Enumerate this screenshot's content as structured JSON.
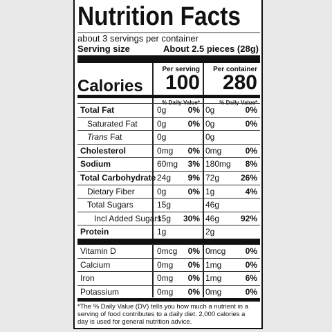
{
  "title": "Nutrition Facts",
  "servings": "about 3 servings per container",
  "serving_size_label": "Serving size",
  "serving_size_value": "About 2.5 pieces (28g)",
  "per_serving": "Per serving",
  "per_container": "Per container",
  "calories_label": "Calories",
  "calories_serving": "100",
  "calories_container": "280",
  "dv_header": "% Daily Value*",
  "dv_header_container": "% Daily Value*",
  "rows": [
    {
      "name": "Total Fat",
      "bold": true,
      "indent": 0,
      "a1": "0g",
      "d1": "0%",
      "a2": "0g",
      "d2": "0%"
    },
    {
      "name": "Saturated Fat",
      "bold": false,
      "indent": 1,
      "a1": "0g",
      "d1": "0%",
      "a2": "0g",
      "d2": "0%"
    },
    {
      "name_prefix": "Trans",
      "name": "Fat",
      "bold": false,
      "indent": 1,
      "a1": "0g",
      "a2": "0g"
    },
    {
      "name": "Cholesterol",
      "bold": true,
      "indent": 0,
      "a1": "0mg",
      "d1": "0%",
      "a2": "0mg",
      "d2": "0%"
    },
    {
      "name": "Sodium",
      "bold": true,
      "indent": 0,
      "a1": "60mg",
      "d1": "3%",
      "a2": "180mg",
      "d2": "8%"
    },
    {
      "name": "Total Carbohydrate",
      "bold": true,
      "indent": 0,
      "a1": "24g",
      "d1": "9%",
      "a2": "72g",
      "d2": "26%"
    },
    {
      "name": "Dietary Fiber",
      "bold": false,
      "indent": 1,
      "a1": "0g",
      "d1": "0%",
      "a2": "1g",
      "d2": "4%"
    },
    {
      "name": "Total Sugars",
      "bold": false,
      "indent": 1,
      "a1": "15g",
      "a2": "46g"
    },
    {
      "name": "Incl Added Sugars",
      "bold": false,
      "indent": 2,
      "a1": "15g",
      "d1": "30%",
      "a2": "46g",
      "d2": "92%"
    },
    {
      "name": "Protein",
      "bold": true,
      "indent": 0,
      "a1": "1g",
      "a2": "2g"
    }
  ],
  "vitamins": [
    {
      "name": "Vitamin D",
      "a1": "0mcg",
      "d1": "0%",
      "a2": "0mcg",
      "d2": "0%"
    },
    {
      "name": "Calcium",
      "a1": "0mg",
      "d1": "0%",
      "a2": "1mg",
      "d2": "0%"
    },
    {
      "name": "Iron",
      "a1": "0mg",
      "d1": "0%",
      "a2": "1mg",
      "d2": "6%"
    },
    {
      "name": "Potassium",
      "a1": "0mg",
      "d1": "0%",
      "a2": "0mg",
      "d2": "0%"
    }
  ],
  "footnote": "*The % Daily Value (DV) tells you how much a nutrient in a serving of food contributes to a daily diet. 2,000 calories a day is used for general nutrition advice."
}
